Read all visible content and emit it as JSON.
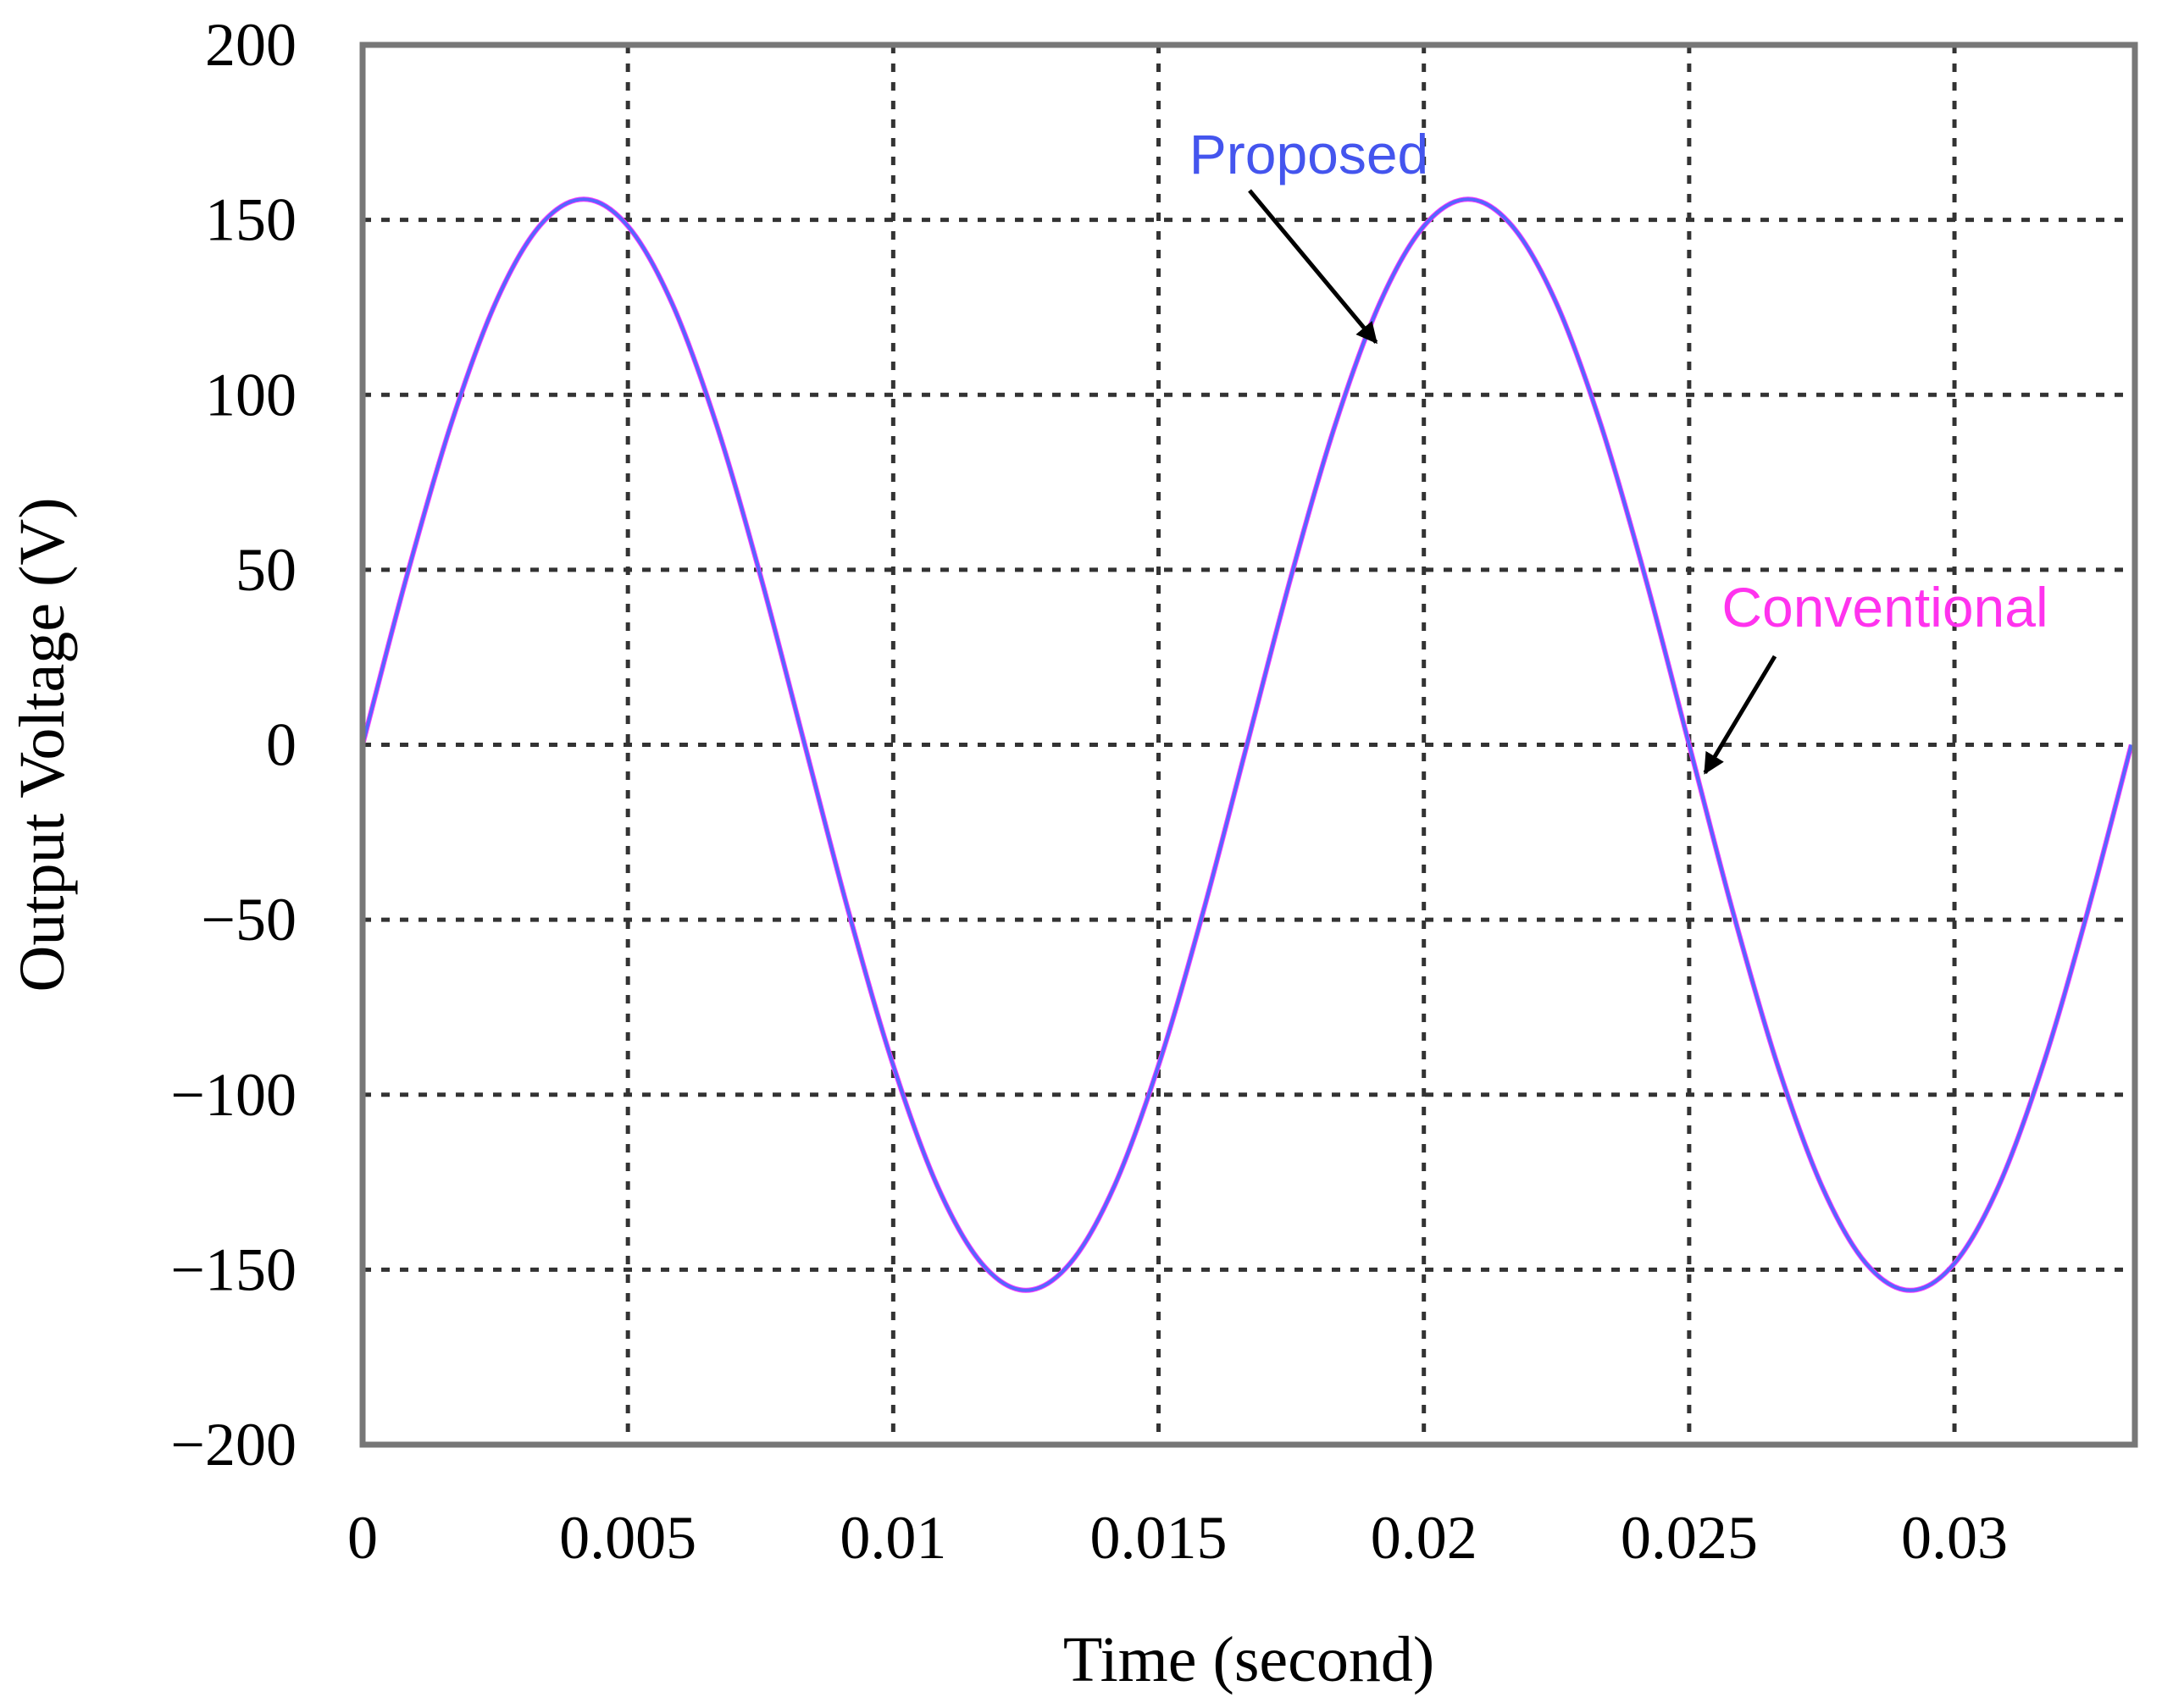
{
  "chart_data": {
    "type": "line",
    "title": "",
    "xlabel": "Time (second)",
    "ylabel": "Output Voltage (V)",
    "xlim": [
      0,
      0.0334
    ],
    "ylim": [
      -200,
      200
    ],
    "x_ticks": [
      {
        "value": 0,
        "label": "0"
      },
      {
        "value": 0.005,
        "label": "0.005"
      },
      {
        "value": 0.01,
        "label": "0.01"
      },
      {
        "value": 0.015,
        "label": "0.015"
      },
      {
        "value": 0.02,
        "label": "0.02"
      },
      {
        "value": 0.025,
        "label": "0.025"
      },
      {
        "value": 0.03,
        "label": "0.03"
      }
    ],
    "y_ticks": [
      {
        "value": 200,
        "label": "200"
      },
      {
        "value": 150,
        "label": "150"
      },
      {
        "value": 100,
        "label": "100"
      },
      {
        "value": 50,
        "label": "50"
      },
      {
        "value": 0,
        "label": "0"
      },
      {
        "value": -50,
        "label": "−50"
      },
      {
        "value": -100,
        "label": "−100"
      },
      {
        "value": -150,
        "label": "−150"
      },
      {
        "value": -200,
        "label": "−200"
      }
    ],
    "grid": true,
    "legend": "none",
    "series": [
      {
        "name": "Conventional",
        "color": "#ff33ff",
        "x": [
          0,
          0.000833,
          0.001667,
          0.0025,
          0.003333,
          0.004167,
          0.005,
          0.005833,
          0.006667,
          0.0075,
          0.008333,
          0.009167,
          0.01,
          0.010833,
          0.011667,
          0.0125,
          0.013333,
          0.014167,
          0.015,
          0.015833,
          0.016667,
          0.0175,
          0.018333,
          0.019167,
          0.02,
          0.020833,
          0.021667,
          0.0225,
          0.023333,
          0.024167,
          0.025,
          0.025833,
          0.026667,
          0.0275,
          0.028333,
          0.029167,
          0.03,
          0.030833,
          0.031667,
          0.0325,
          0.033333
        ],
        "y": [
          0,
          48.2,
          91.6,
          126.1,
          148.2,
          155.9,
          148.2,
          126.1,
          91.6,
          48.2,
          0,
          -48.2,
          -91.6,
          -126.1,
          -148.2,
          -155.9,
          -148.2,
          -126.1,
          -91.6,
          -48.2,
          0,
          48.2,
          91.6,
          126.1,
          148.2,
          155.9,
          148.2,
          126.1,
          91.6,
          48.2,
          0,
          -48.2,
          -91.6,
          -126.1,
          -148.2,
          -155.9,
          -148.2,
          -126.1,
          -91.6,
          -48.2,
          0
        ]
      },
      {
        "name": "Proposed",
        "color": "#5566ff",
        "x": [
          0,
          0.000833,
          0.001667,
          0.0025,
          0.003333,
          0.004167,
          0.005,
          0.005833,
          0.006667,
          0.0075,
          0.008333,
          0.009167,
          0.01,
          0.010833,
          0.011667,
          0.0125,
          0.013333,
          0.014167,
          0.015,
          0.015833,
          0.016667,
          0.0175,
          0.018333,
          0.019167,
          0.02,
          0.020833,
          0.021667,
          0.0225,
          0.023333,
          0.024167,
          0.025,
          0.025833,
          0.026667,
          0.0275,
          0.028333,
          0.029167,
          0.03,
          0.030833,
          0.031667,
          0.0325,
          0.033333
        ],
        "y": [
          0,
          48.2,
          91.6,
          126.1,
          148.2,
          155.9,
          148.2,
          126.1,
          91.6,
          48.2,
          0,
          -48.2,
          -91.6,
          -126.1,
          -148.2,
          -155.9,
          -148.2,
          -126.1,
          -91.6,
          -48.2,
          0,
          48.2,
          91.6,
          126.1,
          148.2,
          155.9,
          148.2,
          126.1,
          91.6,
          48.2,
          0,
          -48.2,
          -91.6,
          -126.1,
          -148.2,
          -155.9,
          -148.2,
          -126.1,
          -91.6,
          -48.2,
          0
        ]
      }
    ],
    "annotations": [
      {
        "text": "Proposed",
        "color": "#4455ee",
        "target_x": 0.0191,
        "target_y": 115
      },
      {
        "text": "Conventional",
        "color": "#ff33ee",
        "target_x": 0.0253,
        "target_y": -8
      }
    ]
  }
}
